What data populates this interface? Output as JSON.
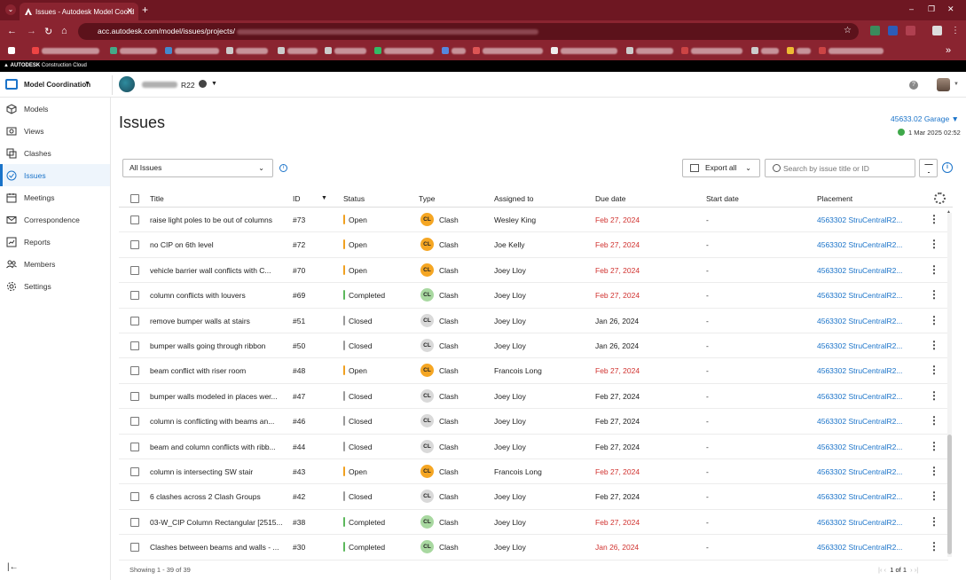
{
  "browser": {
    "tab_title": "Issues - Autodesk Model Coord",
    "new_tab": "+",
    "url_prefix": "acc.autodesk.com/model/issues/projects/",
    "window_controls": [
      "–",
      "❐",
      "✕"
    ]
  },
  "brand": {
    "name": "AUTODESK",
    "product": "Construction Cloud"
  },
  "header": {
    "module": "Model Coordination",
    "project_suffix": "R22",
    "help": "?"
  },
  "sidebar": {
    "items": [
      {
        "label": "Models",
        "icon": "cube-icon"
      },
      {
        "label": "Views",
        "icon": "eye-icon"
      },
      {
        "label": "Clashes",
        "icon": "clashes-icon"
      },
      {
        "label": "Issues",
        "icon": "check-circle-icon",
        "active": true
      },
      {
        "label": "Meetings",
        "icon": "meetings-icon"
      },
      {
        "label": "Correspondence",
        "icon": "mail-icon"
      },
      {
        "label": "Reports",
        "icon": "reports-icon"
      },
      {
        "label": "Members",
        "icon": "members-icon"
      },
      {
        "label": "Settings",
        "icon": "gear-icon"
      }
    ]
  },
  "main": {
    "title": "Issues",
    "context_link": "45633.02 Garage",
    "context_date": "1 Mar 2025 02:52",
    "filter_select": "All Issues",
    "export_label": "Export all",
    "search_placeholder": "Search by issue title or ID",
    "footer_count": "Showing 1 - 39 of 39",
    "pager": {
      "current": "1",
      "of": "of 1"
    }
  },
  "table": {
    "columns": [
      "Title",
      "ID",
      "Status",
      "Type",
      "Assigned to",
      "Due date",
      "Start date",
      "Placement"
    ],
    "rows": [
      {
        "title": "raise light poles to be out of columns",
        "id": "#73",
        "status": "Open",
        "type": "Clash",
        "badge": "CL",
        "assigned": "Wesley King",
        "due": "Feb 27, 2024",
        "overdue": true,
        "start": "-",
        "placement": "4563302 StruCentralR2..."
      },
      {
        "title": "no CIP on 6th level",
        "id": "#72",
        "status": "Open",
        "type": "Clash",
        "badge": "CL",
        "assigned": "Joe Kelly",
        "due": "Feb 27, 2024",
        "overdue": true,
        "start": "-",
        "placement": "4563302 StruCentralR2..."
      },
      {
        "title": "vehicle barrier wall conflicts with C...",
        "id": "#70",
        "status": "Open",
        "type": "Clash",
        "badge": "CL",
        "assigned": "Joey Lloy",
        "due": "Feb 27, 2024",
        "overdue": true,
        "start": "-",
        "placement": "4563302 StruCentralR2..."
      },
      {
        "title": "column conflicts with louvers",
        "id": "#69",
        "status": "Completed",
        "type": "Clash",
        "badge": "CL",
        "assigned": "Joey Lloy",
        "due": "Feb 27, 2024",
        "overdue": true,
        "start": "-",
        "placement": "4563302 StruCentralR2..."
      },
      {
        "title": "remove bumper walls at stairs",
        "id": "#51",
        "status": "Closed",
        "type": "Clash",
        "badge": "CL",
        "assigned": "Joey Lloy",
        "due": "Jan 26, 2024",
        "overdue": false,
        "start": "-",
        "placement": "4563302 StruCentralR2..."
      },
      {
        "title": "bumper walls going through ribbon",
        "id": "#50",
        "status": "Closed",
        "type": "Clash",
        "badge": "CL",
        "assigned": "Joey Lloy",
        "due": "Jan 26, 2024",
        "overdue": false,
        "start": "-",
        "placement": "4563302 StruCentralR2..."
      },
      {
        "title": "beam conflict with riser room",
        "id": "#48",
        "status": "Open",
        "type": "Clash",
        "badge": "CL",
        "assigned": "Francois Long",
        "due": "Feb 27, 2024",
        "overdue": true,
        "start": "-",
        "placement": "4563302 StruCentralR2..."
      },
      {
        "title": "bumper walls modeled in places wer...",
        "id": "#47",
        "status": "Closed",
        "type": "Clash",
        "badge": "CL",
        "assigned": "Joey Lloy",
        "due": "Feb 27, 2024",
        "overdue": false,
        "start": "-",
        "placement": "4563302 StruCentralR2..."
      },
      {
        "title": "column is conflicting with beams an...",
        "id": "#46",
        "status": "Closed",
        "type": "Clash",
        "badge": "CL",
        "assigned": "Joey Lloy",
        "due": "Feb 27, 2024",
        "overdue": false,
        "start": "-",
        "placement": "4563302 StruCentralR2..."
      },
      {
        "title": "beam and column conflicts with ribb...",
        "id": "#44",
        "status": "Closed",
        "type": "Clash",
        "badge": "CL",
        "assigned": "Joey Lloy",
        "due": "Feb 27, 2024",
        "overdue": false,
        "start": "-",
        "placement": "4563302 StruCentralR2..."
      },
      {
        "title": "column is intersecting SW stair",
        "id": "#43",
        "status": "Open",
        "type": "Clash",
        "badge": "CL",
        "assigned": "Francois Long",
        "due": "Feb 27, 2024",
        "overdue": true,
        "start": "-",
        "placement": "4563302 StruCentralR2..."
      },
      {
        "title": "6 clashes across 2 Clash Groups",
        "id": "#42",
        "status": "Closed",
        "type": "Clash",
        "badge": "CL",
        "assigned": "Joey Lloy",
        "due": "Feb 27, 2024",
        "overdue": false,
        "start": "-",
        "placement": "4563302 StruCentralR2..."
      },
      {
        "title": "03-W_CIP Column Rectangular [2515...",
        "id": "#38",
        "status": "Completed",
        "type": "Clash",
        "badge": "CL",
        "assigned": "Joey Lloy",
        "due": "Feb 27, 2024",
        "overdue": true,
        "start": "-",
        "placement": "4563302 StruCentralR2..."
      },
      {
        "title": "Clashes between beams and walls - ...",
        "id": "#30",
        "status": "Completed",
        "type": "Clash",
        "badge": "CL",
        "assigned": "Joey Lloy",
        "due": "Jan 26, 2024",
        "overdue": true,
        "start": "-",
        "placement": "4563302 StruCentralR2..."
      }
    ]
  },
  "colors": {
    "accent": "#1a73c9",
    "open": "#f0a020",
    "completed": "#5cb85c",
    "closed": "#9a9a9a",
    "overdue": "#d0322f",
    "badge_open": "#f5a623",
    "badge_completed": "#a8d8a0",
    "badge_closed": "#d9d9d9"
  }
}
